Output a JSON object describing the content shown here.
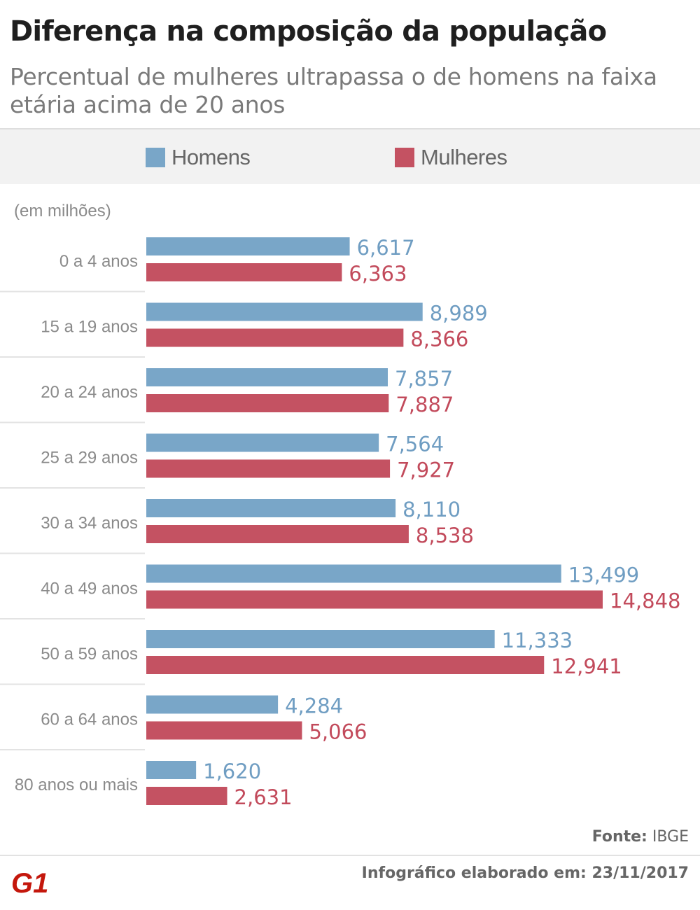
{
  "header": {
    "title": "Diferença na composição da população",
    "subtitle": "Percentual de mulheres ultrapassa o de homens na faixa etária acima de 20 anos"
  },
  "legend": {
    "men_label": "Homens",
    "women_label": "Mulheres"
  },
  "unit_label": "(em milhões)",
  "colors": {
    "men": "#79a6c8",
    "women": "#c45262",
    "men_text": "#6f9dc2",
    "women_text": "#c24a5b"
  },
  "chart_data": {
    "type": "bar",
    "orientation": "horizontal",
    "categories": [
      "0 a 4 anos",
      "15 a 19 anos",
      "20 a 24 anos",
      "25 a 29 anos",
      "30 a 34 anos",
      "40 a 49 anos",
      "50 a 59 anos",
      "60 a 64 anos",
      "80 anos ou mais"
    ],
    "series": [
      {
        "name": "Homens",
        "values": [
          6.617,
          8.989,
          7.857,
          7.564,
          8.11,
          13.499,
          11.333,
          4.284,
          1.62
        ],
        "labels": [
          "6,617",
          "8,989",
          "7,857",
          "7,564",
          "8,110",
          "13,499",
          "11,333",
          "4,284",
          "1,620"
        ]
      },
      {
        "name": "Mulheres",
        "values": [
          6.363,
          8.366,
          7.887,
          7.927,
          8.538,
          14.848,
          12.941,
          5.066,
          2.631
        ],
        "labels": [
          "6,363",
          "8,366",
          "7,887",
          "7,927",
          "8,538",
          "14,848",
          "12,941",
          "5,066",
          "2,631"
        ]
      }
    ],
    "xlim": [
      0,
      14.848
    ],
    "legend_position": "top",
    "grid": false
  },
  "footer": {
    "source_prefix": "Fonte:",
    "source": "IBGE",
    "logo_text": "G1",
    "date": "Infográfico elaborado em: 23/11/2017"
  }
}
